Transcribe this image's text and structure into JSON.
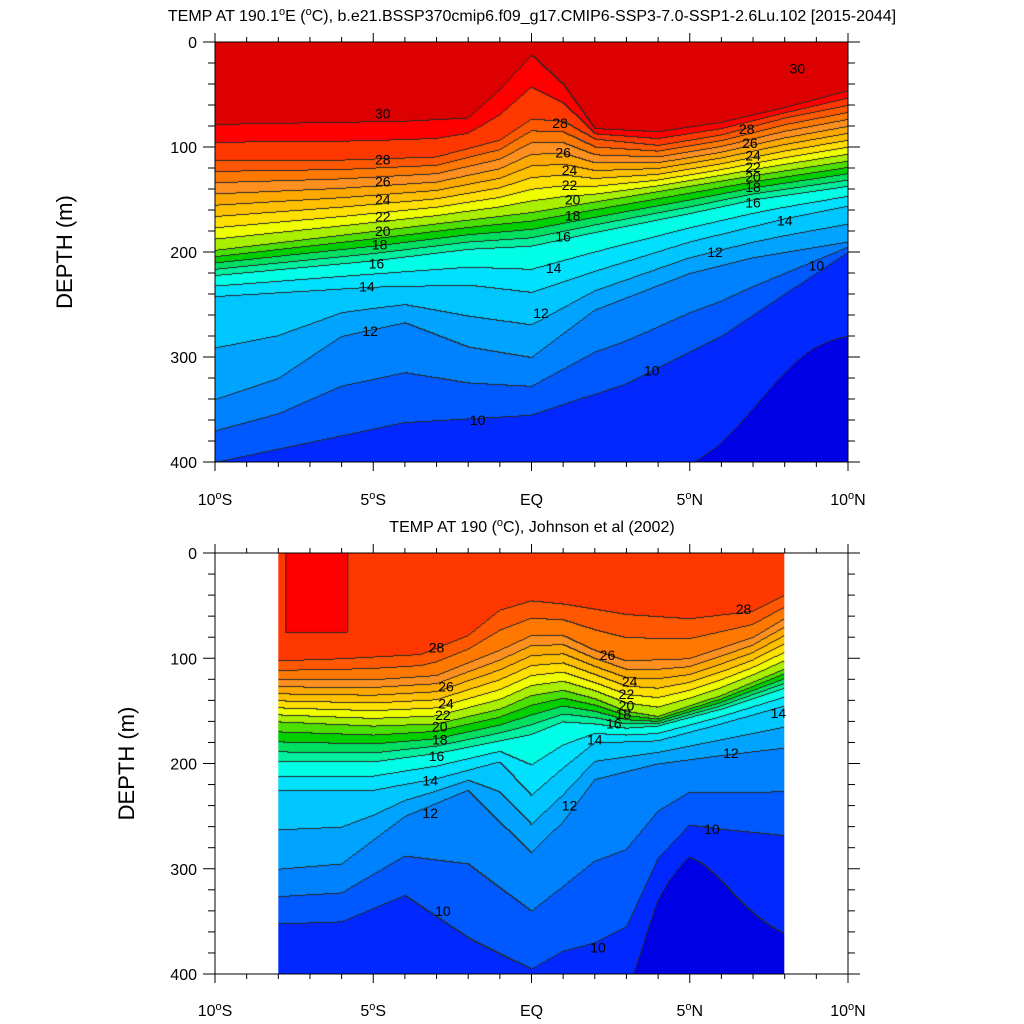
{
  "chart_data": [
    {
      "type": "heatmap",
      "title": "TEMP AT 190.1°E (°C), b.e21.BSSP370cmip6.f09_g17.CMIP6-SSP3-7.0-SSP1-2.6Lu.102 [2015-2044]",
      "title_parts": [
        "TEMP AT 190.1",
        "o",
        "E (",
        "o",
        "C), b.e21.BSSP370cmip6.f09_g17.CMIP6-SSP3-7.0-SSP1-2.6Lu.102 [2015-2044]"
      ],
      "xlabel": "",
      "ylabel": "DEPTH (m)",
      "xlim": [
        -10,
        10
      ],
      "ylim": [
        400,
        0
      ],
      "data_xlim": [
        -10,
        10
      ],
      "x_ticks": [
        {
          "value": -10,
          "main": "10",
          "sup": "o",
          "suf": "S"
        },
        {
          "value": -5,
          "main": "5",
          "sup": "o",
          "suf": "S"
        },
        {
          "value": 0,
          "main": "EQ",
          "sup": "",
          "suf": ""
        },
        {
          "value": 5,
          "main": "5",
          "sup": "o",
          "suf": "N"
        },
        {
          "value": 10,
          "main": "10",
          "sup": "o",
          "suf": "N"
        }
      ],
      "y_ticks": [
        0,
        100,
        200,
        300,
        400
      ],
      "contour_interval": 1,
      "contour_labels": [
        {
          "text": "30",
          "x": -4.7,
          "y": 68
        },
        {
          "text": "30",
          "x": 8.4,
          "y": 25
        },
        {
          "text": "28",
          "x": -4.7,
          "y": 112
        },
        {
          "text": "28",
          "x": 0.9,
          "y": 77
        },
        {
          "text": "28",
          "x": 6.8,
          "y": 83
        },
        {
          "text": "26",
          "x": -4.7,
          "y": 133
        },
        {
          "text": "26",
          "x": 1.0,
          "y": 105
        },
        {
          "text": "26",
          "x": 6.9,
          "y": 96
        },
        {
          "text": "24",
          "x": -4.7,
          "y": 150
        },
        {
          "text": "24",
          "x": 1.2,
          "y": 122
        },
        {
          "text": "24",
          "x": 7.0,
          "y": 108
        },
        {
          "text": "22",
          "x": -4.7,
          "y": 166
        },
        {
          "text": "22",
          "x": 1.2,
          "y": 136
        },
        {
          "text": "22",
          "x": 7.0,
          "y": 119
        },
        {
          "text": "20",
          "x": -4.7,
          "y": 180
        },
        {
          "text": "20",
          "x": 1.3,
          "y": 150
        },
        {
          "text": "20",
          "x": 7.0,
          "y": 128
        },
        {
          "text": "18",
          "x": -4.8,
          "y": 193
        },
        {
          "text": "18",
          "x": 1.3,
          "y": 165
        },
        {
          "text": "18",
          "x": 7.0,
          "y": 138
        },
        {
          "text": "16",
          "x": -4.9,
          "y": 211
        },
        {
          "text": "16",
          "x": 1.0,
          "y": 185
        },
        {
          "text": "16",
          "x": 7.0,
          "y": 153
        },
        {
          "text": "14",
          "x": -5.2,
          "y": 233
        },
        {
          "text": "14",
          "x": 0.7,
          "y": 215
        },
        {
          "text": "14",
          "x": 8.0,
          "y": 170
        },
        {
          "text": "12",
          "x": -5.1,
          "y": 275
        },
        {
          "text": "12",
          "x": 0.3,
          "y": 258
        },
        {
          "text": "12",
          "x": 5.8,
          "y": 200
        },
        {
          "text": "10",
          "x": -1.7,
          "y": 360
        },
        {
          "text": "10",
          "x": 3.8,
          "y": 313
        },
        {
          "text": "10",
          "x": 9.0,
          "y": 213
        }
      ]
    },
    {
      "type": "heatmap",
      "title": "TEMP AT 190 (°C), Johnson et al (2002)",
      "title_parts": [
        "TEMP AT 190 (",
        "o",
        "C), Johnson et al (2002)"
      ],
      "xlabel": "",
      "ylabel": "DEPTH (m)",
      "xlim": [
        -10,
        10
      ],
      "ylim": [
        400,
        0
      ],
      "data_xlim": [
        -8,
        8
      ],
      "x_ticks": [
        {
          "value": -10,
          "main": "10",
          "sup": "o",
          "suf": "S"
        },
        {
          "value": -5,
          "main": "5",
          "sup": "o",
          "suf": "S"
        },
        {
          "value": 0,
          "main": "EQ",
          "sup": "",
          "suf": ""
        },
        {
          "value": 5,
          "main": "5",
          "sup": "o",
          "suf": "N"
        },
        {
          "value": 10,
          "main": "10",
          "sup": "o",
          "suf": "N"
        }
      ],
      "y_ticks": [
        0,
        100,
        200,
        300,
        400
      ],
      "contour_interval": 1,
      "contour_labels": [
        {
          "text": "28",
          "x": -3.0,
          "y": 90
        },
        {
          "text": "28",
          "x": 6.7,
          "y": 53
        },
        {
          "text": "26",
          "x": -2.7,
          "y": 127
        },
        {
          "text": "26",
          "x": 2.4,
          "y": 97
        },
        {
          "text": "24",
          "x": -2.7,
          "y": 143
        },
        {
          "text": "24",
          "x": 3.1,
          "y": 122
        },
        {
          "text": "22",
          "x": -2.8,
          "y": 154
        },
        {
          "text": "22",
          "x": 3.0,
          "y": 134
        },
        {
          "text": "20",
          "x": -2.9,
          "y": 165
        },
        {
          "text": "20",
          "x": 3.0,
          "y": 145
        },
        {
          "text": "18",
          "x": -2.9,
          "y": 177
        },
        {
          "text": "18",
          "x": 2.9,
          "y": 153
        },
        {
          "text": "16",
          "x": -3.0,
          "y": 193
        },
        {
          "text": "16",
          "x": 2.6,
          "y": 162
        },
        {
          "text": "14",
          "x": -3.2,
          "y": 216
        },
        {
          "text": "14",
          "x": 2.0,
          "y": 177
        },
        {
          "text": "14",
          "x": 7.8,
          "y": 152
        },
        {
          "text": "12",
          "x": -3.2,
          "y": 247
        },
        {
          "text": "12",
          "x": 1.2,
          "y": 240
        },
        {
          "text": "12",
          "x": 6.3,
          "y": 190
        },
        {
          "text": "10",
          "x": -2.8,
          "y": 340
        },
        {
          "text": "10",
          "x": 2.1,
          "y": 375
        },
        {
          "text": "10",
          "x": 5.7,
          "y": 262
        }
      ]
    }
  ]
}
